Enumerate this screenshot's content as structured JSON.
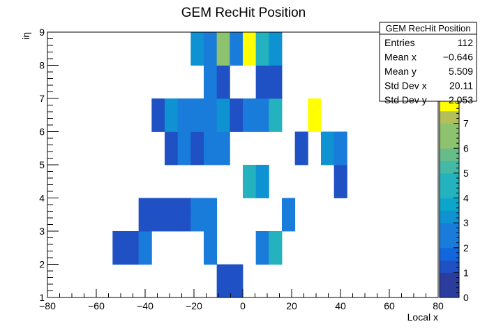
{
  "chart_data": {
    "type": "heatmap",
    "title": "GEM RecHit Position",
    "xlabel": "Local x",
    "ylabel": "iη",
    "xlim": [
      -80,
      80
    ],
    "ylim": [
      1,
      9
    ],
    "zlim": [
      0,
      8
    ],
    "x_ticks": [
      "−80",
      "−60",
      "−40",
      "−20",
      "0",
      "20",
      "40",
      "60",
      "80"
    ],
    "y_ticks": [
      "1",
      "2",
      "3",
      "4",
      "5",
      "6",
      "7",
      "8",
      "9"
    ],
    "z_ticks": [
      "0",
      "1",
      "2",
      "3",
      "4",
      "5",
      "6",
      "7"
    ],
    "bin_width": 5.333,
    "bin_height": 0.5,
    "cells": [
      {
        "x0": -10.67,
        "x1": -5.33,
        "y0": 1.0,
        "y1": 1.5,
        "v": 1
      },
      {
        "x0": -5.33,
        "x1": 0.0,
        "y0": 1.0,
        "y1": 1.5,
        "v": 1
      },
      {
        "x0": -10.67,
        "x1": -5.33,
        "y0": 1.5,
        "y1": 2.0,
        "v": 1
      },
      {
        "x0": -5.33,
        "x1": 0.0,
        "y0": 1.5,
        "y1": 2.0,
        "v": 1
      },
      {
        "x0": -53.33,
        "x1": -48.0,
        "y0": 2.0,
        "y1": 2.5,
        "v": 1
      },
      {
        "x0": -48.0,
        "x1": -42.67,
        "y0": 2.0,
        "y1": 2.5,
        "v": 1
      },
      {
        "x0": -42.67,
        "x1": -37.33,
        "y0": 2.0,
        "y1": 2.5,
        "v": 2
      },
      {
        "x0": -16.0,
        "x1": -10.67,
        "y0": 2.0,
        "y1": 2.5,
        "v": 2
      },
      {
        "x0": 5.33,
        "x1": 10.67,
        "y0": 2.0,
        "y1": 2.5,
        "v": 2
      },
      {
        "x0": 10.67,
        "x1": 16.0,
        "y0": 2.0,
        "y1": 2.5,
        "v": 4
      },
      {
        "x0": -53.33,
        "x1": -48.0,
        "y0": 2.5,
        "y1": 3.0,
        "v": 1
      },
      {
        "x0": -48.0,
        "x1": -42.67,
        "y0": 2.5,
        "y1": 3.0,
        "v": 1
      },
      {
        "x0": -42.67,
        "x1": -37.33,
        "y0": 2.5,
        "y1": 3.0,
        "v": 2
      },
      {
        "x0": -16.0,
        "x1": -10.67,
        "y0": 2.5,
        "y1": 3.0,
        "v": 2
      },
      {
        "x0": 5.33,
        "x1": 10.67,
        "y0": 2.5,
        "y1": 3.0,
        "v": 2
      },
      {
        "x0": 10.67,
        "x1": 16.0,
        "y0": 2.5,
        "y1": 3.0,
        "v": 4
      },
      {
        "x0": -42.67,
        "x1": -37.33,
        "y0": 3.0,
        "y1": 3.5,
        "v": 1
      },
      {
        "x0": -37.33,
        "x1": -32.0,
        "y0": 3.0,
        "y1": 3.5,
        "v": 1
      },
      {
        "x0": -32.0,
        "x1": -26.67,
        "y0": 3.0,
        "y1": 3.5,
        "v": 1
      },
      {
        "x0": -26.67,
        "x1": -21.33,
        "y0": 3.0,
        "y1": 3.5,
        "v": 1
      },
      {
        "x0": -21.33,
        "x1": -16.0,
        "y0": 3.0,
        "y1": 3.5,
        "v": 2
      },
      {
        "x0": -16.0,
        "x1": -10.67,
        "y0": 3.0,
        "y1": 3.5,
        "v": 2
      },
      {
        "x0": 16.0,
        "x1": 21.33,
        "y0": 3.0,
        "y1": 3.5,
        "v": 2
      },
      {
        "x0": -42.67,
        "x1": -37.33,
        "y0": 3.5,
        "y1": 4.0,
        "v": 1
      },
      {
        "x0": -37.33,
        "x1": -32.0,
        "y0": 3.5,
        "y1": 4.0,
        "v": 1
      },
      {
        "x0": -32.0,
        "x1": -26.67,
        "y0": 3.5,
        "y1": 4.0,
        "v": 1
      },
      {
        "x0": -26.67,
        "x1": -21.33,
        "y0": 3.5,
        "y1": 4.0,
        "v": 1
      },
      {
        "x0": -21.33,
        "x1": -16.0,
        "y0": 3.5,
        "y1": 4.0,
        "v": 2
      },
      {
        "x0": -16.0,
        "x1": -10.67,
        "y0": 3.5,
        "y1": 4.0,
        "v": 2
      },
      {
        "x0": 16.0,
        "x1": 21.33,
        "y0": 3.5,
        "y1": 4.0,
        "v": 2
      },
      {
        "x0": 0.0,
        "x1": 5.33,
        "y0": 4.0,
        "y1": 4.5,
        "v": 4
      },
      {
        "x0": 5.33,
        "x1": 10.67,
        "y0": 4.0,
        "y1": 4.5,
        "v": 3
      },
      {
        "x0": 37.33,
        "x1": 42.67,
        "y0": 4.0,
        "y1": 4.5,
        "v": 1
      },
      {
        "x0": 0.0,
        "x1": 5.33,
        "y0": 4.5,
        "y1": 5.0,
        "v": 4
      },
      {
        "x0": 5.33,
        "x1": 10.67,
        "y0": 4.5,
        "y1": 5.0,
        "v": 3
      },
      {
        "x0": 37.33,
        "x1": 42.67,
        "y0": 4.5,
        "y1": 5.0,
        "v": 1
      },
      {
        "x0": -32.0,
        "x1": -26.67,
        "y0": 5.0,
        "y1": 5.5,
        "v": 1
      },
      {
        "x0": -26.67,
        "x1": -21.33,
        "y0": 5.0,
        "y1": 5.5,
        "v": 2
      },
      {
        "x0": -21.33,
        "x1": -16.0,
        "y0": 5.0,
        "y1": 5.5,
        "v": 1
      },
      {
        "x0": -16.0,
        "x1": -10.67,
        "y0": 5.0,
        "y1": 5.5,
        "v": 2
      },
      {
        "x0": -10.67,
        "x1": -5.33,
        "y0": 5.0,
        "y1": 5.5,
        "v": 2
      },
      {
        "x0": 21.33,
        "x1": 26.67,
        "y0": 5.0,
        "y1": 5.5,
        "v": 1
      },
      {
        "x0": 32.0,
        "x1": 37.33,
        "y0": 5.0,
        "y1": 5.5,
        "v": 3
      },
      {
        "x0": 37.33,
        "x1": 42.67,
        "y0": 5.0,
        "y1": 5.5,
        "v": 2
      },
      {
        "x0": -32.0,
        "x1": -26.67,
        "y0": 5.5,
        "y1": 6.0,
        "v": 1
      },
      {
        "x0": -26.67,
        "x1": -21.33,
        "y0": 5.5,
        "y1": 6.0,
        "v": 2
      },
      {
        "x0": -21.33,
        "x1": -16.0,
        "y0": 5.5,
        "y1": 6.0,
        "v": 1
      },
      {
        "x0": -16.0,
        "x1": -10.67,
        "y0": 5.5,
        "y1": 6.0,
        "v": 2
      },
      {
        "x0": -10.67,
        "x1": -5.33,
        "y0": 5.5,
        "y1": 6.0,
        "v": 2
      },
      {
        "x0": 21.33,
        "x1": 26.67,
        "y0": 5.5,
        "y1": 6.0,
        "v": 1
      },
      {
        "x0": 32.0,
        "x1": 37.33,
        "y0": 5.5,
        "y1": 6.0,
        "v": 3
      },
      {
        "x0": 37.33,
        "x1": 42.67,
        "y0": 5.5,
        "y1": 6.0,
        "v": 2
      },
      {
        "x0": -37.33,
        "x1": -32.0,
        "y0": 6.0,
        "y1": 6.5,
        "v": 1
      },
      {
        "x0": -32.0,
        "x1": -26.67,
        "y0": 6.0,
        "y1": 6.5,
        "v": 3
      },
      {
        "x0": -26.67,
        "x1": -21.33,
        "y0": 6.0,
        "y1": 6.5,
        "v": 2
      },
      {
        "x0": -21.33,
        "x1": -16.0,
        "y0": 6.0,
        "y1": 6.5,
        "v": 2
      },
      {
        "x0": -16.0,
        "x1": -10.67,
        "y0": 6.0,
        "y1": 6.5,
        "v": 2
      },
      {
        "x0": -10.67,
        "x1": -5.33,
        "y0": 6.0,
        "y1": 6.5,
        "v": 3
      },
      {
        "x0": -5.33,
        "x1": 0.0,
        "y0": 6.0,
        "y1": 6.5,
        "v": 1
      },
      {
        "x0": 0.0,
        "x1": 5.33,
        "y0": 6.0,
        "y1": 6.5,
        "v": 2
      },
      {
        "x0": 5.33,
        "x1": 10.67,
        "y0": 6.0,
        "y1": 6.5,
        "v": 2
      },
      {
        "x0": 10.67,
        "x1": 16.0,
        "y0": 6.0,
        "y1": 6.5,
        "v": 4
      },
      {
        "x0": 26.67,
        "x1": 32.0,
        "y0": 6.0,
        "y1": 6.5,
        "v": 8
      },
      {
        "x0": -37.33,
        "x1": -32.0,
        "y0": 6.5,
        "y1": 7.0,
        "v": 1
      },
      {
        "x0": -32.0,
        "x1": -26.67,
        "y0": 6.5,
        "y1": 7.0,
        "v": 3
      },
      {
        "x0": -26.67,
        "x1": -21.33,
        "y0": 6.5,
        "y1": 7.0,
        "v": 2
      },
      {
        "x0": -21.33,
        "x1": -16.0,
        "y0": 6.5,
        "y1": 7.0,
        "v": 2
      },
      {
        "x0": -16.0,
        "x1": -10.67,
        "y0": 6.5,
        "y1": 7.0,
        "v": 2
      },
      {
        "x0": -10.67,
        "x1": -5.33,
        "y0": 6.5,
        "y1": 7.0,
        "v": 3
      },
      {
        "x0": -5.33,
        "x1": 0.0,
        "y0": 6.5,
        "y1": 7.0,
        "v": 1
      },
      {
        "x0": 0.0,
        "x1": 5.33,
        "y0": 6.5,
        "y1": 7.0,
        "v": 2
      },
      {
        "x0": 5.33,
        "x1": 10.67,
        "y0": 6.5,
        "y1": 7.0,
        "v": 2
      },
      {
        "x0": 10.67,
        "x1": 16.0,
        "y0": 6.5,
        "y1": 7.0,
        "v": 4
      },
      {
        "x0": 26.67,
        "x1": 32.0,
        "y0": 6.5,
        "y1": 7.0,
        "v": 8
      },
      {
        "x0": -16.0,
        "x1": -10.67,
        "y0": 7.0,
        "y1": 7.5,
        "v": 2
      },
      {
        "x0": -10.67,
        "x1": -5.33,
        "y0": 7.0,
        "y1": 7.5,
        "v": 1
      },
      {
        "x0": 5.33,
        "x1": 10.67,
        "y0": 7.0,
        "y1": 7.5,
        "v": 1
      },
      {
        "x0": 10.67,
        "x1": 16.0,
        "y0": 7.0,
        "y1": 7.5,
        "v": 1
      },
      {
        "x0": -16.0,
        "x1": -10.67,
        "y0": 7.5,
        "y1": 8.0,
        "v": 2
      },
      {
        "x0": -10.67,
        "x1": -5.33,
        "y0": 7.5,
        "y1": 8.0,
        "v": 1
      },
      {
        "x0": 5.33,
        "x1": 10.67,
        "y0": 7.5,
        "y1": 8.0,
        "v": 1
      },
      {
        "x0": 10.67,
        "x1": 16.0,
        "y0": 7.5,
        "y1": 8.0,
        "v": 1
      },
      {
        "x0": -21.33,
        "x1": -16.0,
        "y0": 8.0,
        "y1": 8.5,
        "v": 3
      },
      {
        "x0": -16.0,
        "x1": -10.67,
        "y0": 8.0,
        "y1": 8.5,
        "v": 2
      },
      {
        "x0": -10.67,
        "x1": -5.33,
        "y0": 8.0,
        "y1": 8.5,
        "v": 6
      },
      {
        "x0": -5.33,
        "x1": 0.0,
        "y0": 8.0,
        "y1": 8.5,
        "v": 2
      },
      {
        "x0": 0.0,
        "x1": 5.33,
        "y0": 8.0,
        "y1": 8.5,
        "v": 8
      },
      {
        "x0": 5.33,
        "x1": 10.67,
        "y0": 8.0,
        "y1": 8.5,
        "v": 4
      },
      {
        "x0": 10.67,
        "x1": 16.0,
        "y0": 8.0,
        "y1": 8.5,
        "v": 3
      },
      {
        "x0": -21.33,
        "x1": -16.0,
        "y0": 8.5,
        "y1": 9.0,
        "v": 3
      },
      {
        "x0": -16.0,
        "x1": -10.67,
        "y0": 8.5,
        "y1": 9.0,
        "v": 2
      },
      {
        "x0": -10.67,
        "x1": -5.33,
        "y0": 8.5,
        "y1": 9.0,
        "v": 6
      },
      {
        "x0": -5.33,
        "x1": 0.0,
        "y0": 8.5,
        "y1": 9.0,
        "v": 2
      },
      {
        "x0": 0.0,
        "x1": 5.33,
        "y0": 8.5,
        "y1": 9.0,
        "v": 8
      },
      {
        "x0": 5.33,
        "x1": 10.67,
        "y0": 8.5,
        "y1": 9.0,
        "v": 4
      },
      {
        "x0": 10.67,
        "x1": 16.0,
        "y0": 8.5,
        "y1": 9.0,
        "v": 3
      }
    ],
    "palette": [
      "#2a3c9c",
      "#1f50c4",
      "#1367dc",
      "#1a7cda",
      "#0f92d2",
      "#0ca6cb",
      "#24b3be",
      "#44b9a6",
      "#68bc8a",
      "#8dc26e",
      "#b2bf5a",
      "#d2b84e",
      "#ffff00"
    ],
    "grid": false,
    "legend_position": "top-right",
    "stats": {
      "name": "GEM RecHit Position",
      "rows": [
        {
          "label": "Entries",
          "value": "112"
        },
        {
          "label": "Mean x",
          "value": "−0.646"
        },
        {
          "label": "Mean y",
          "value": "5.509"
        },
        {
          "label": "Std Dev x",
          "value": "20.11"
        },
        {
          "label": "Std Dev y",
          "value": "2.053"
        }
      ]
    }
  }
}
